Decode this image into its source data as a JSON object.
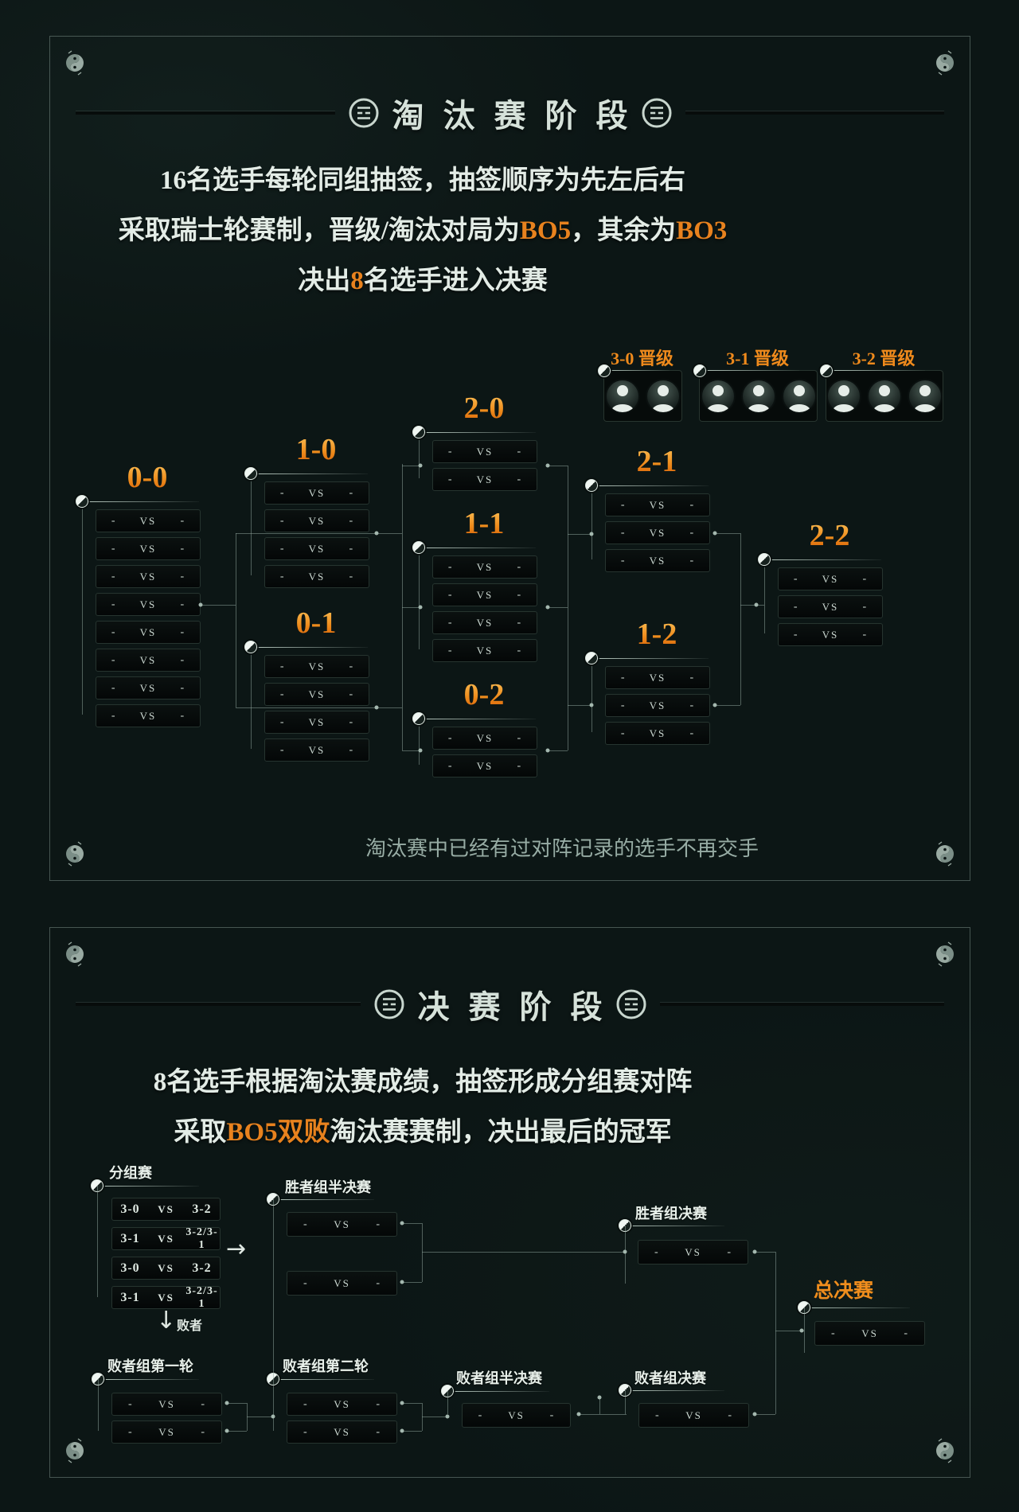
{
  "colors": {
    "accent": "#e8821e",
    "text": "#e3ece6",
    "dim": "#97aca4"
  },
  "icons": {
    "arrow_right": "→",
    "arrow_down": "↓"
  },
  "panel1": {
    "title": "淘汰赛阶段",
    "desc": [
      [
        {
          "t": "16名选手每轮同组抽签，抽签顺序为先左后右"
        }
      ],
      [
        {
          "t": "采取瑞士轮赛制，晋级/淘汰对局为"
        },
        {
          "t": "BO5",
          "hl": true
        },
        {
          "t": "，其余为"
        },
        {
          "t": "BO3",
          "hl": true
        }
      ],
      [
        {
          "t": "决出"
        },
        {
          "t": "8",
          "hl": true
        },
        {
          "t": "名选手进入决赛"
        }
      ]
    ],
    "qualify": [
      {
        "label": "3-0 晋级",
        "avatars": 2
      },
      {
        "label": "3-1 晋级",
        "avatars": 3
      },
      {
        "label": "3-2 晋级",
        "avatars": 3
      }
    ],
    "groups": [
      {
        "label": "0-0",
        "matches": 8
      },
      {
        "label": "1-0",
        "matches": 4
      },
      {
        "label": "0-1",
        "matches": 4
      },
      {
        "label": "2-0",
        "matches": 2
      },
      {
        "label": "1-1",
        "matches": 4
      },
      {
        "label": "0-2",
        "matches": 2
      },
      {
        "label": "2-1",
        "matches": 3
      },
      {
        "label": "1-2",
        "matches": 3
      },
      {
        "label": "2-2",
        "matches": 3
      }
    ],
    "placeholder": {
      "left": "-",
      "vs": "VS",
      "right": "-"
    },
    "footnote": "淘汰赛中已经有过对阵记录的选手不再交手"
  },
  "panel2": {
    "title": "决赛阶段",
    "desc": [
      [
        {
          "t": "8名选手根据淘汰赛成绩，抽签形成分组赛对阵"
        }
      ],
      [
        {
          "t": "采取"
        },
        {
          "t": "BO5双败",
          "hl": true
        },
        {
          "t": "淘汰赛赛制，决出最后的冠军"
        }
      ]
    ],
    "group_stage": {
      "label": "分组赛",
      "loser_label": "败者",
      "matches": [
        {
          "left": "3-0",
          "vs": "VS",
          "right": "3-2"
        },
        {
          "left": "3-1",
          "vs": "VS",
          "right": "3-2/3-1"
        },
        {
          "left": "3-0",
          "vs": "VS",
          "right": "3-2"
        },
        {
          "left": "3-1",
          "vs": "VS",
          "right": "3-2/3-1"
        }
      ]
    },
    "rounds": [
      {
        "id": "wsf",
        "label": "胜者组半决赛",
        "matches": 2
      },
      {
        "id": "wf",
        "label": "胜者组决赛",
        "matches": 1
      },
      {
        "id": "gf",
        "label": "总决赛",
        "matches": 1,
        "accent": true
      },
      {
        "id": "lr1",
        "label": "败者组第一轮",
        "matches": 2
      },
      {
        "id": "lr2",
        "label": "败者组第二轮",
        "matches": 2
      },
      {
        "id": "lsf",
        "label": "败者组半决赛",
        "matches": 1
      },
      {
        "id": "lf",
        "label": "败者组决赛",
        "matches": 1
      }
    ],
    "placeholder": {
      "left": "-",
      "vs": "VS",
      "right": "-"
    }
  }
}
